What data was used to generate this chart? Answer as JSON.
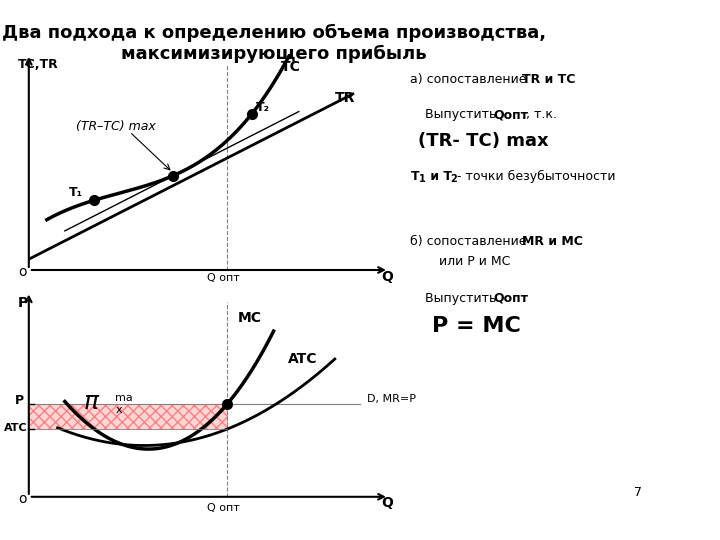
{
  "title": "Два подхода к определению объема производства,\nмаксимизирующего прибыль",
  "title_fontsize": 13,
  "bg_color": "#ffffff",
  "annotation_right": {
    "a_head": "а) сопоставление ",
    "a_head_bold": "TR и TC",
    "a_sub1": "Выпустить  ",
    "a_sub1_bold": "Qопт",
    "a_sub1_rest": "., т.к.",
    "a_formula": "(TR- TC) max",
    "a_breakeven": "Т₁ и Т₂ - точки безубыточности",
    "b_head": "б) сопоставление ",
    "b_head_bold": "MR и MC",
    "b_head_rest": "\n      или Р и МС",
    "b_sub1": "Выпустить  ",
    "b_sub1_bold": "Qопт",
    "b_formula": "P = MC"
  },
  "top_chart": {
    "ylabel": "TC,TR",
    "xlabel": "Q",
    "qopt_label": "Q опт",
    "tc_label": "TC",
    "tr_label": "TR",
    "t1_label": "T₁",
    "t2_label": "T₂",
    "tr_tc_label": "(TR–TC) max"
  },
  "bottom_chart": {
    "ylabel": "P",
    "xlabel": "Q",
    "mc_label": "MC",
    "atc_label": "ATC",
    "d_label": "D, MR=P",
    "p_label": "P",
    "atc_tick_label": "ATC",
    "qopt_label": "Q опт",
    "pi_label": "π",
    "pi_sub": "ma\nx"
  },
  "page_number": "7"
}
